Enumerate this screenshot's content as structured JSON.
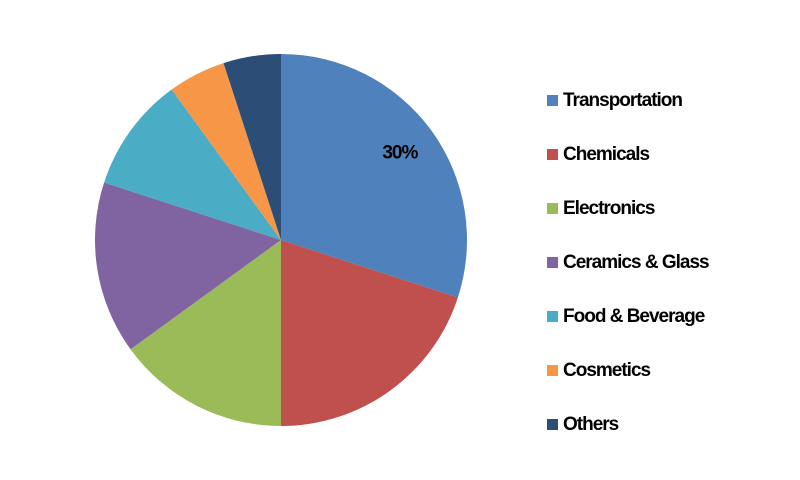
{
  "chart_data": {
    "type": "pie",
    "categories": [
      "Transportation",
      "Chemicals",
      "Electronics",
      "Ceramics & Glass",
      "Food & Beverage",
      "Cosmetics",
      "Others"
    ],
    "values": [
      30,
      20,
      15,
      15,
      10,
      5,
      5
    ],
    "value_labels": [
      "30%",
      null,
      null,
      null,
      null,
      null,
      null
    ],
    "colors": [
      "#4f81bd",
      "#c0504d",
      "#9bbb59",
      "#8064a2",
      "#4bacc6",
      "#f79646",
      "#2c4d75"
    ],
    "legend": "right"
  }
}
